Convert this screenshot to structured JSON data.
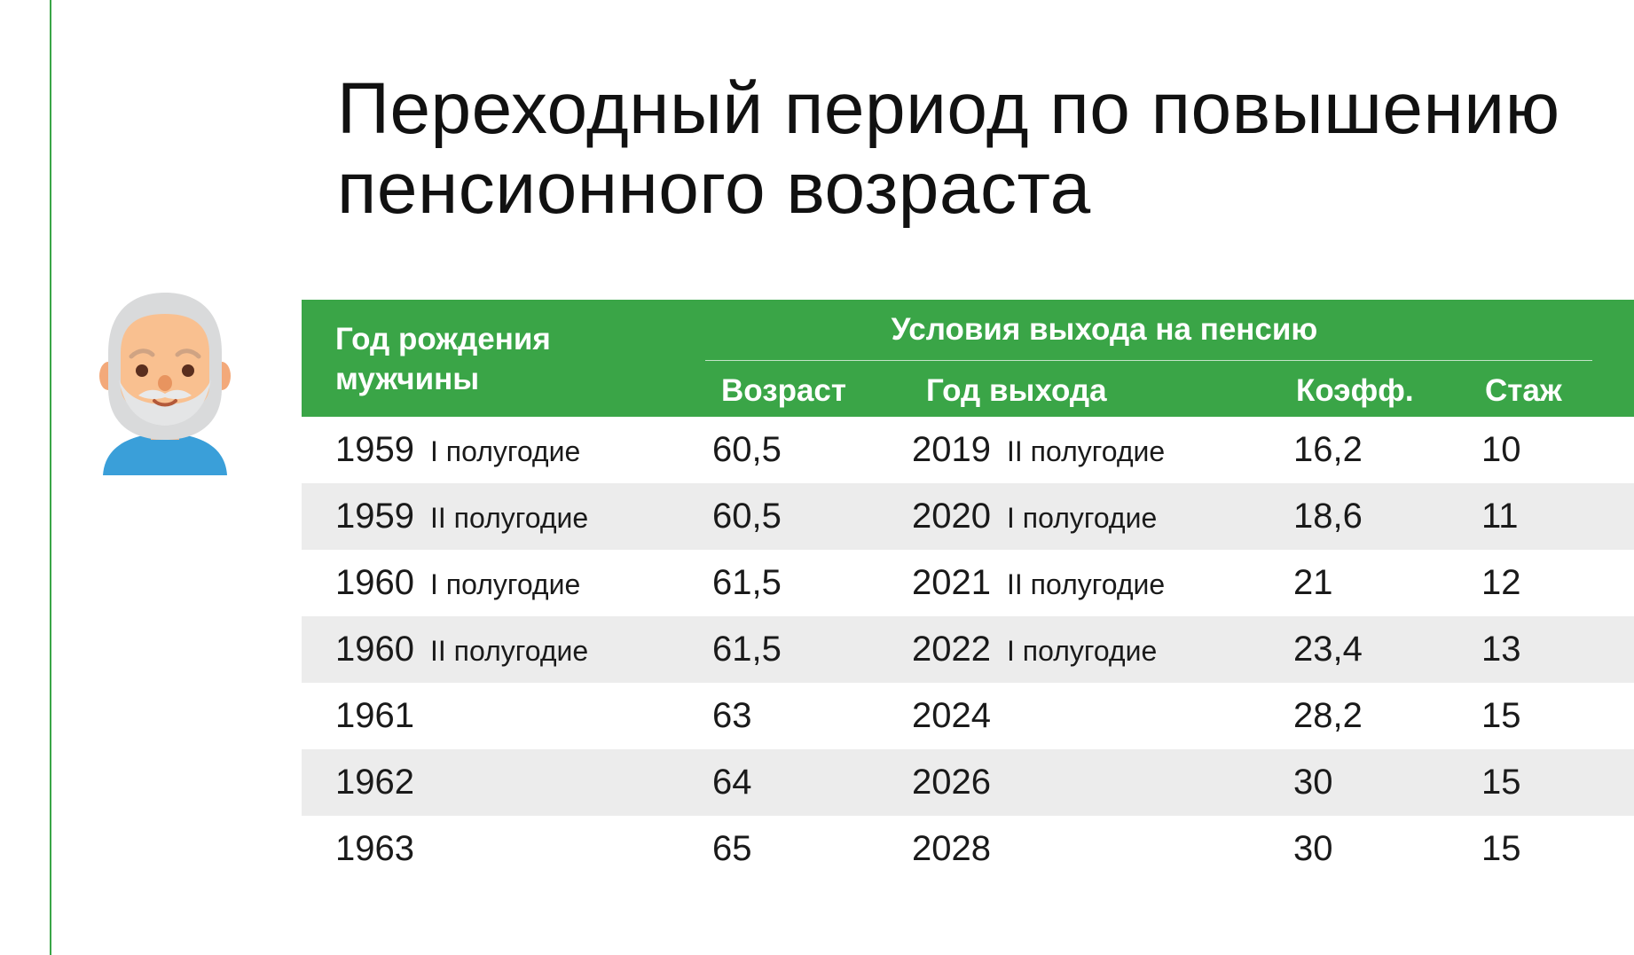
{
  "title": "Переходный период по повышению пенсионного возраста",
  "colors": {
    "accent": "#3aa547",
    "row_shade": "#ececec",
    "header_text": "#ffffff"
  },
  "avatar_icon": "elderly-man-icon",
  "table": {
    "header": {
      "birth": "Год рождения мужчины",
      "conditions": "Условия выхода на пенсию",
      "age": "Возраст",
      "year_out": "Год выхода",
      "coeff": "Коэфф.",
      "tenure": "Стаж"
    },
    "rows": [
      {
        "birth_year": "1959",
        "birth_half": "I полугодие",
        "age": "60,5",
        "out_year": "2019",
        "out_half": "II полугодие",
        "coeff": "16,2",
        "tenure": "10"
      },
      {
        "birth_year": "1959",
        "birth_half": "II полугодие",
        "age": "60,5",
        "out_year": "2020",
        "out_half": "I полугодие",
        "coeff": "18,6",
        "tenure": "11"
      },
      {
        "birth_year": "1960",
        "birth_half": "I полугодие",
        "age": "61,5",
        "out_year": "2021",
        "out_half": "II полугодие",
        "coeff": "21",
        "tenure": "12"
      },
      {
        "birth_year": "1960",
        "birth_half": "II полугодие",
        "age": "61,5",
        "out_year": "2022",
        "out_half": "I полугодие",
        "coeff": "23,4",
        "tenure": "13"
      },
      {
        "birth_year": "1961",
        "birth_half": "",
        "age": "63",
        "out_year": "2024",
        "out_half": "",
        "coeff": "28,2",
        "tenure": "15"
      },
      {
        "birth_year": "1962",
        "birth_half": "",
        "age": "64",
        "out_year": "2026",
        "out_half": "",
        "coeff": "30",
        "tenure": "15"
      },
      {
        "birth_year": "1963",
        "birth_half": "",
        "age": "65",
        "out_year": "2028",
        "out_half": "",
        "coeff": "30",
        "tenure": "15"
      }
    ]
  }
}
